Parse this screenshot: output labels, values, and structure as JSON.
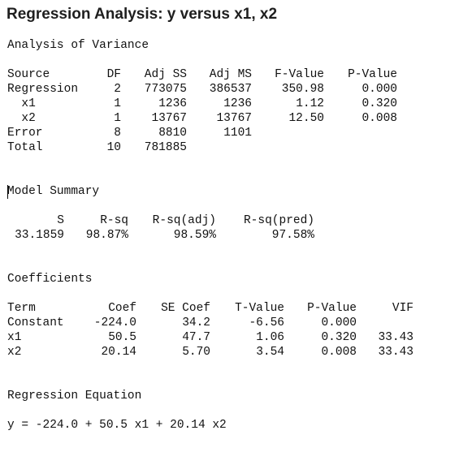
{
  "title": "Regression Analysis: y versus x1, x2",
  "anova": {
    "heading": "Analysis of Variance",
    "headers": {
      "source": "Source",
      "df": "DF",
      "adj_ss": "Adj SS",
      "adj_ms": "Adj MS",
      "f": "F-Value",
      "p": "P-Value"
    },
    "rows": [
      {
        "source": "Regression",
        "df": "2",
        "adj_ss": "773075",
        "adj_ms": "386537",
        "f": "350.98",
        "p": "0.000"
      },
      {
        "source": "  x1",
        "df": "1",
        "adj_ss": "1236",
        "adj_ms": "1236",
        "f": "1.12",
        "p": "0.320"
      },
      {
        "source": "  x2",
        "df": "1",
        "adj_ss": "13767",
        "adj_ms": "13767",
        "f": "12.50",
        "p": "0.008"
      },
      {
        "source": "Error",
        "df": "8",
        "adj_ss": "8810",
        "adj_ms": "1101",
        "f": "",
        "p": ""
      },
      {
        "source": "Total",
        "df": "10",
        "adj_ss": "781885",
        "adj_ms": "",
        "f": "",
        "p": ""
      }
    ]
  },
  "summary": {
    "heading": "Model Summary",
    "headers": {
      "s": "S",
      "rsq": "R-sq",
      "rsq_adj": "R-sq(adj)",
      "rsq_pred": "R-sq(pred)"
    },
    "values": {
      "s": "33.1859",
      "rsq": "98.87%",
      "rsq_adj": "98.59%",
      "rsq_pred": "97.58%"
    }
  },
  "coefficients": {
    "heading": "Coefficients",
    "headers": {
      "term": "Term",
      "coef": "Coef",
      "se": "SE Coef",
      "t": "T-Value",
      "p": "P-Value",
      "vif": "VIF"
    },
    "rows": [
      {
        "term": "Constant",
        "coef": "-224.0",
        "se": "34.2",
        "t": "-6.56",
        "p": "0.000",
        "vif": ""
      },
      {
        "term": "x1",
        "coef": "50.5",
        "se": "47.7",
        "t": "1.06",
        "p": "0.320",
        "vif": "33.43"
      },
      {
        "term": "x2",
        "coef": "20.14",
        "se": "5.70",
        "t": "3.54",
        "p": "0.008",
        "vif": "33.43"
      }
    ]
  },
  "equation": {
    "heading": "Regression Equation",
    "text": "y = -224.0 + 50.5 x1 + 20.14 x2"
  }
}
